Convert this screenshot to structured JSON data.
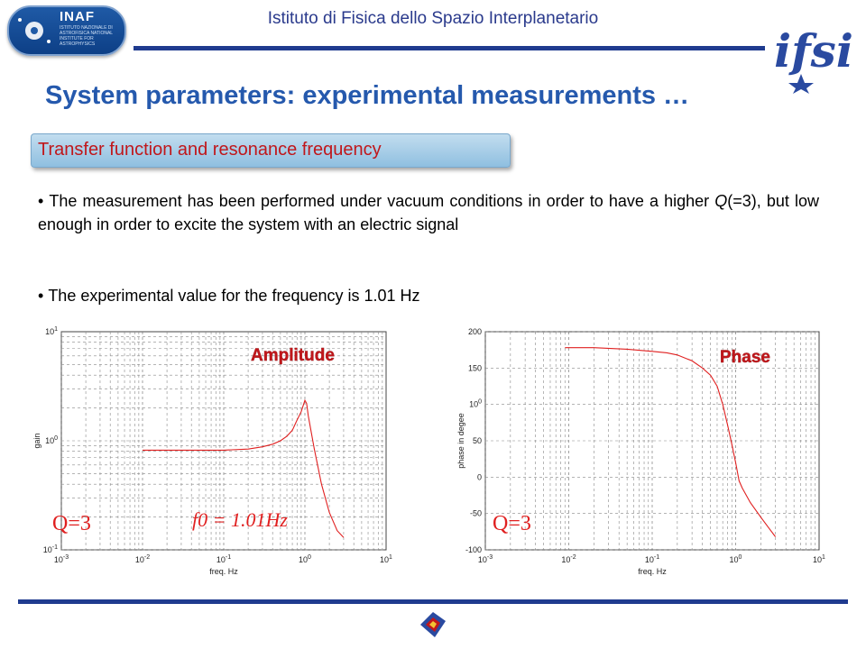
{
  "header": {
    "institute": "Istituto di Fisica dello Spazio Interplanetario",
    "left_logo": {
      "name": "INAF",
      "subtitle": "ISTITUTO NAZIONALE DI ASTROFISICA NATIONAL INSTITUTE FOR ASTROPHYSICS"
    },
    "right_logo": {
      "name": "ifsi"
    }
  },
  "slide": {
    "title": "System parameters: experimental measurements …",
    "section_label": "Transfer function and resonance frequency",
    "para1_before": "The measurement has been performed under vacuum conditions in order to have a higher ",
    "para1_q": "Q",
    "para1_after": "(=3), but low enough in order to excite the system with an electric signal",
    "para2": "The experimental value for the frequency is 1.01 Hz"
  },
  "colors": {
    "title_blue": "#2559ad",
    "section_red": "#c0171b",
    "line_navy": "#1f3b8f",
    "curve_red": "#e02020"
  },
  "chart_data": [
    {
      "type": "line",
      "title": "Amplitude",
      "xlabel": "freq. Hz",
      "ylabel": "gain",
      "xscale": "log",
      "yscale": "log",
      "xlim": [
        0.001,
        10
      ],
      "ylim": [
        0.1,
        10
      ],
      "x_ticks": [
        "10-3",
        "10-2",
        "10-1",
        "100",
        "101"
      ],
      "y_ticks": [
        "10-1",
        "100",
        "101"
      ],
      "grid": true,
      "annotations": [
        "Q=3",
        "f0 = 1.01Hz"
      ],
      "series": [
        {
          "x": [
            0.01,
            0.02,
            0.05,
            0.1,
            0.2,
            0.3,
            0.4,
            0.5,
            0.6,
            0.7,
            0.8,
            0.9,
            1.0,
            1.05,
            1.1,
            1.3,
            1.6,
            2.0,
            2.5,
            3.0
          ],
          "y": [
            0.82,
            0.82,
            0.82,
            0.82,
            0.84,
            0.88,
            0.93,
            1.0,
            1.1,
            1.25,
            1.55,
            1.85,
            2.35,
            2.2,
            1.7,
            0.85,
            0.4,
            0.22,
            0.15,
            0.13
          ]
        }
      ]
    },
    {
      "type": "line",
      "title": "Phase",
      "xlabel": "freq. Hz",
      "ylabel": "phase in degee",
      "xscale": "log",
      "xlim": [
        0.001,
        10
      ],
      "ylim": [
        -100,
        200
      ],
      "x_ticks": [
        "10-3",
        "10-2",
        "10-1",
        "100",
        "101"
      ],
      "y_ticks": [
        "-100",
        "-50",
        "0",
        "50",
        "100",
        "150",
        "200"
      ],
      "grid": true,
      "annotations": [
        "Q=3"
      ],
      "series": [
        {
          "x": [
            0.009,
            0.02,
            0.05,
            0.1,
            0.15,
            0.2,
            0.3,
            0.4,
            0.5,
            0.6,
            0.7,
            0.8,
            0.9,
            1.0,
            1.1,
            1.2,
            1.5,
            2.0,
            2.5,
            3.0
          ],
          "y": [
            178,
            178,
            176,
            173,
            171,
            168,
            160,
            150,
            140,
            125,
            100,
            72,
            45,
            20,
            -5,
            -15,
            -35,
            -55,
            -70,
            -82
          ]
        }
      ]
    }
  ]
}
